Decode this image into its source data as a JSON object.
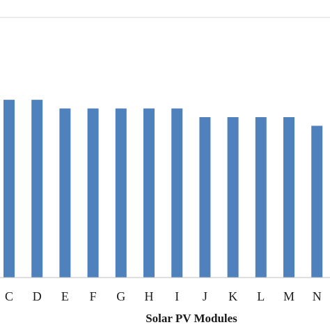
{
  "chart_data": {
    "type": "bar",
    "categories": [
      "C",
      "D",
      "E",
      "F",
      "G",
      "H",
      "I",
      "J",
      "K",
      "L",
      "M",
      "N"
    ],
    "series": [
      {
        "values": [
          20.5,
          20.5,
          19.5,
          19.5,
          19.5,
          19.5,
          19.5,
          18.5,
          18.5,
          18.5,
          18.5,
          17.5
        ],
        "color": "#4f81bd"
      }
    ],
    "xlabel": "Solar PV Modules",
    "ylabel": "",
    "ylim": [
      0,
      30
    ],
    "grid": "horizontal",
    "gridline_values": [
      30
    ]
  }
}
